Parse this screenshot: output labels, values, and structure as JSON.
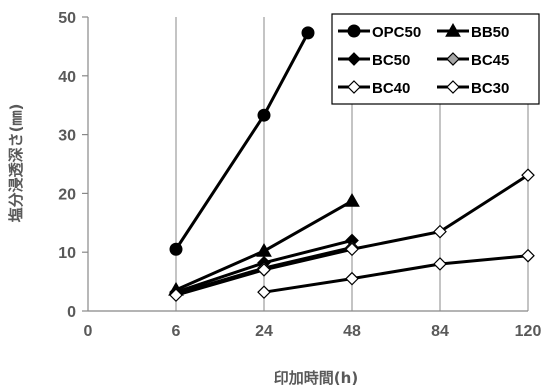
{
  "chart_data": {
    "type": "line",
    "xlabel": "印加時間(h)",
    "ylabel": "塩分浸透深さ(㎜)",
    "x_categories": [
      "0",
      "6",
      "24",
      "48",
      "84",
      "120"
    ],
    "ylim": [
      0,
      50
    ],
    "y_ticks": [
      0,
      10,
      20,
      30,
      40,
      50
    ],
    "grid": "vertical",
    "legend_position": "top-right",
    "series": [
      {
        "name": "OPC50",
        "marker": "filled-circle",
        "points": [
          [
            "6",
            10.5
          ],
          [
            "24",
            33.3
          ],
          [
            "36",
            47.3
          ]
        ]
      },
      {
        "name": "BB50",
        "marker": "filled-triangle",
        "points": [
          [
            "6",
            3.6
          ],
          [
            "24",
            10.2
          ],
          [
            "48",
            18.7
          ]
        ]
      },
      {
        "name": "BC50",
        "marker": "filled-diamond",
        "points": [
          [
            "6",
            3.2
          ],
          [
            "24",
            8.2
          ],
          [
            "48",
            12.0
          ]
        ]
      },
      {
        "name": "BC45",
        "marker": "gray-diamond",
        "points": [
          [
            "6",
            2.9
          ],
          [
            "24",
            7.3
          ],
          [
            "48",
            10.8
          ]
        ]
      },
      {
        "name": "BC40",
        "marker": "open-diamond",
        "points": [
          [
            "6",
            2.7
          ],
          [
            "24",
            7.0
          ],
          [
            "48",
            10.5
          ],
          [
            "84",
            13.5
          ],
          [
            "120",
            23.1
          ]
        ]
      },
      {
        "name": "BC30",
        "marker": "open-diamond",
        "points": [
          [
            "24",
            3.2
          ],
          [
            "48",
            5.5
          ],
          [
            "84",
            8.0
          ],
          [
            "120",
            9.4
          ]
        ]
      }
    ]
  },
  "colors": {
    "line": "#000000",
    "axis": "#888888",
    "gray_marker": "#a6a6a6",
    "open_marker": "#ffffff"
  }
}
